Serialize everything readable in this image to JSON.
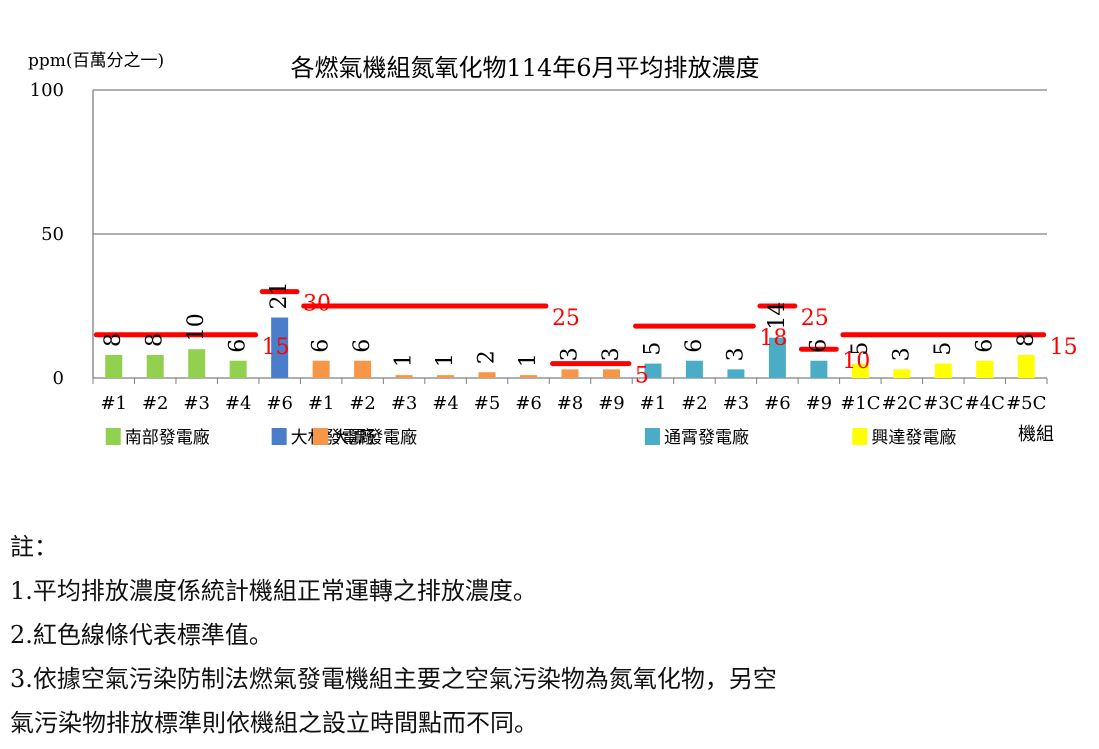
{
  "chart_data": {
    "type": "bar",
    "title": "各燃氣機組氮氧化物114年6月平均排放濃度",
    "ylabel": "ppm(百萬分之一)",
    "xlabel": "機組",
    "ylim": [
      0,
      100
    ],
    "yticks": [
      "0",
      "50",
      "100"
    ],
    "grid": true,
    "categories": [
      "#1",
      "#2",
      "#3",
      "#4",
      "#6",
      "#1",
      "#2",
      "#3",
      "#4",
      "#5",
      "#6",
      "#8",
      "#9",
      "#1",
      "#2",
      "#3",
      "#6",
      "#9",
      "#1C",
      "#2C",
      "#3C",
      "#4C",
      "#5C"
    ],
    "values": [
      8,
      8,
      10,
      6,
      21,
      6,
      6,
      1,
      1,
      2,
      1,
      3,
      3,
      5,
      6,
      3,
      14,
      6,
      5,
      3,
      5,
      6,
      8
    ],
    "value_labels": [
      "8",
      "8",
      "10",
      "6",
      "21",
      "6",
      "6",
      "1",
      "1",
      "2",
      "1",
      "3",
      "3",
      "5",
      "6",
      "3",
      "14",
      "6",
      "5",
      "3",
      "5",
      "6",
      "8"
    ],
    "plants": [
      {
        "name": "南部發電廠",
        "color": "#92d050",
        "start": 0,
        "end": 3
      },
      {
        "name": "大林發電廠",
        "color": "#4a7ecb",
        "start": 4,
        "end": 4
      },
      {
        "name": "大潭發電廠",
        "color": "#f79646",
        "start": 5,
        "end": 12
      },
      {
        "name": "通霄發電廠",
        "color": "#4bacc6",
        "start": 13,
        "end": 17
      },
      {
        "name": "興達發電廠",
        "color": "#ffff00",
        "start": 18,
        "end": 22
      }
    ],
    "standards": [
      {
        "value": 15,
        "label": "15",
        "start": 0,
        "end": 3
      },
      {
        "value": 30,
        "label": "30",
        "start": 4,
        "end": 4
      },
      {
        "value": 25,
        "label": "25",
        "start": 5,
        "end": 10
      },
      {
        "value": 5,
        "label": "5",
        "start": 11,
        "end": 12
      },
      {
        "value": 18,
        "label": "18",
        "start": 13,
        "end": 15
      },
      {
        "value": 25,
        "label": "25",
        "start": 16,
        "end": 16
      },
      {
        "value": 10,
        "label": "10",
        "start": 17,
        "end": 17
      },
      {
        "value": 15,
        "label": "15",
        "start": 18,
        "end": 22
      }
    ],
    "standard_color": "#ff0000"
  },
  "notes": {
    "heading": "註：",
    "items": [
      "1.平均排放濃度係統計機組正常運轉之排放濃度。",
      "2.紅色線條代表標準值。",
      "3.依據空氣污染防制法燃氣發電機組主要之空氣污染物為氮氧化物，另空",
      "氣污染物排放標準則依機組之設立時間點而不同。"
    ]
  }
}
